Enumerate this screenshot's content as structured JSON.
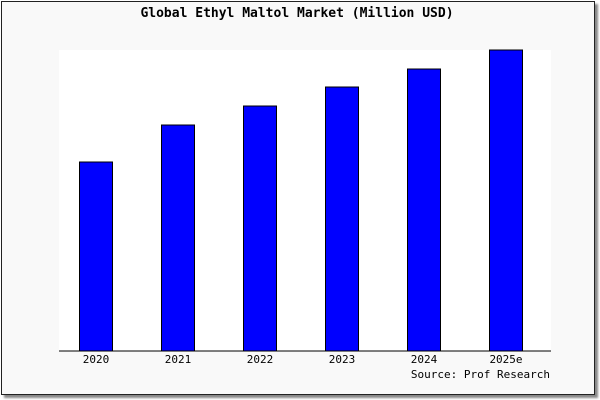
{
  "chart_data": {
    "type": "bar",
    "title": "Global Ethyl Maltol Market (Million USD)",
    "categories": [
      "2020",
      "2021",
      "2022",
      "2023",
      "2024",
      "2025e"
    ],
    "values": [
      189,
      226,
      245,
      264,
      282,
      301
    ],
    "ylim": [
      0,
      301
    ],
    "xlabel": "",
    "ylabel": "",
    "grid": false,
    "bar_color": "#0000ff",
    "source": "Source: Prof Research"
  }
}
